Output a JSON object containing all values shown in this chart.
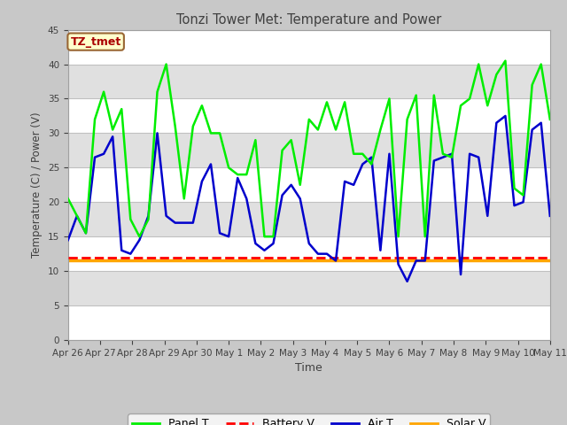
{
  "title": "Tonzi Tower Met: Temperature and Power",
  "xlabel": "Time",
  "ylabel": "Temperature (C) / Power (V)",
  "ylim": [
    0,
    45
  ],
  "yticks": [
    0,
    5,
    10,
    15,
    20,
    25,
    30,
    35,
    40,
    45
  ],
  "xtick_labels": [
    "Apr 26",
    "Apr 27",
    "Apr 28",
    "Apr 29",
    "Apr 30",
    "May 1",
    "May 2",
    "May 3",
    "May 4",
    "May 5",
    "May 6",
    "May 7",
    "May 8",
    "May 9",
    "May 10",
    "May 11"
  ],
  "annotation_text": "TZ_tmet",
  "annotation_color": "#AA0000",
  "annotation_bg": "#FFFFCC",
  "annotation_border": "#996633",
  "fig_bg": "#C8C8C8",
  "plot_bg": "#E8E8E8",
  "grid_color": "#D0D0D0",
  "panel_t_color": "#00EE00",
  "battery_v_color": "#FF0000",
  "air_t_color": "#0000CC",
  "solar_v_color": "#FFA500",
  "legend_labels": [
    "Panel T",
    "Battery V",
    "Air T",
    "Solar V"
  ],
  "panel_t_data": [
    20.5,
    18.0,
    15.5,
    32.0,
    36.0,
    30.5,
    33.5,
    17.5,
    15.0,
    17.5,
    36.0,
    40.0,
    31.0,
    20.5,
    31.0,
    34.0,
    30.0,
    30.0,
    25.0,
    24.0,
    24.0,
    29.0,
    15.0,
    15.0,
    27.5,
    29.0,
    22.5,
    32.0,
    30.5,
    34.5,
    30.5,
    34.5,
    27.0,
    27.0,
    25.5,
    30.5,
    35.0,
    15.0,
    32.0,
    35.5,
    15.0,
    35.5,
    27.0,
    26.5,
    34.0,
    35.0,
    40.0,
    34.0,
    38.5,
    40.5,
    22.0,
    21.0,
    37.0,
    40.0,
    32.0
  ],
  "air_t_data": [
    14.5,
    18.0,
    15.5,
    26.5,
    27.0,
    29.5,
    13.0,
    12.5,
    14.5,
    18.0,
    30.0,
    18.0,
    17.0,
    17.0,
    17.0,
    23.0,
    25.5,
    15.5,
    15.0,
    23.5,
    20.5,
    14.0,
    13.0,
    14.0,
    21.0,
    22.5,
    20.5,
    14.0,
    12.5,
    12.5,
    11.5,
    23.0,
    22.5,
    25.5,
    26.5,
    13.0,
    27.0,
    11.0,
    8.5,
    11.5,
    11.5,
    26.0,
    26.5,
    27.0,
    9.5,
    27.0,
    26.5,
    18.0,
    31.5,
    32.5,
    19.5,
    20.0,
    30.5,
    31.5,
    18.0
  ],
  "battery_v_data": [
    12.0,
    12.0,
    12.0,
    12.0,
    12.0,
    12.0,
    12.0,
    12.0,
    12.0,
    12.0,
    12.0,
    12.0,
    12.0,
    12.0,
    12.0,
    12.0,
    12.0,
    12.0,
    12.0,
    12.0,
    12.0,
    12.0,
    12.0,
    12.0,
    12.0,
    12.0,
    12.0,
    12.0,
    12.0,
    12.0,
    12.0,
    12.0,
    12.0,
    12.0,
    12.0,
    12.0,
    12.0,
    12.0,
    12.0,
    12.0,
    12.0,
    12.0,
    12.0,
    12.0,
    12.0,
    12.0,
    12.0,
    12.0,
    12.0,
    12.0,
    12.0,
    12.0,
    12.0,
    12.0,
    12.0
  ],
  "solar_v_data": [
    11.5,
    11.5,
    11.5,
    11.5,
    11.5,
    11.5,
    11.5,
    11.5,
    11.5,
    11.5,
    11.5,
    11.5,
    11.5,
    11.5,
    11.5,
    11.5,
    11.5,
    11.5,
    11.5,
    11.5,
    11.5,
    11.5,
    11.5,
    11.5,
    11.5,
    11.5,
    11.5,
    11.5,
    11.5,
    11.5,
    11.5,
    11.5,
    11.5,
    11.5,
    11.5,
    11.5,
    11.5,
    11.5,
    11.5,
    11.5,
    11.5,
    11.5,
    11.5,
    11.5,
    11.5,
    11.5,
    11.5,
    11.5,
    11.5,
    11.5,
    11.5,
    11.5,
    11.5,
    11.5,
    11.5
  ]
}
